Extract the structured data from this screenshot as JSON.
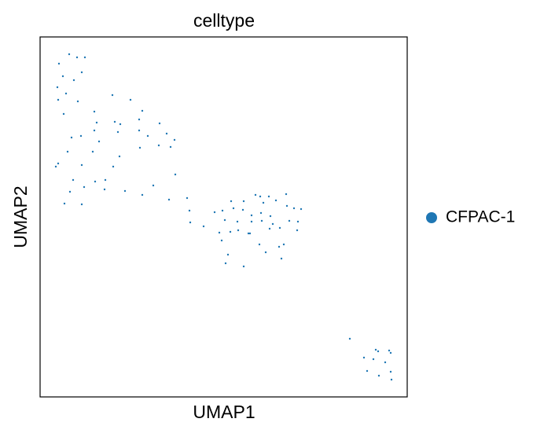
{
  "chart_data": {
    "type": "scatter",
    "title": "celltype",
    "x_label": "UMAP1",
    "y_label": "UMAP2",
    "xlim": [
      0,
      467
    ],
    "ylim": [
      0,
      458
    ],
    "legend": "right",
    "series": [
      {
        "name": "CFPAC-1",
        "color": "#1f77b4",
        "x": [
          37,
          47,
          57,
          24,
          53,
          29,
          43,
          22,
          33,
          23,
          48,
          69,
          30,
          92,
          115,
          130,
          72,
          95,
          102,
          126,
          152,
          69,
          99,
          126,
          137,
          161,
          40,
          52,
          75,
          171,
          127,
          151,
          166,
          35,
          67,
          101,
          23,
          20,
          53,
          93,
          172,
          42,
          70,
          83,
          56,
          38,
          82,
          108,
          130,
          144,
          31,
          53,
          164,
          187,
          190,
          191,
          208,
          222,
          232,
          243,
          246,
          259,
          258,
          274,
          280,
          291,
          313,
          284,
          300,
          269,
          281,
          293,
          314,
          323,
          332,
          235,
          251,
          269,
          282,
          296,
          317,
          228,
          242,
          252,
          265,
          267,
          292,
          305,
          327,
          328,
          231,
          279,
          287,
          304,
          310,
          239,
          236,
          259,
          307,
          394,
          427,
          430,
          444,
          446,
          412,
          424,
          439,
          416,
          431,
          446,
          447
        ],
        "values": [
          436,
          432,
          432,
          424,
          413,
          408,
          403,
          394,
          386,
          378,
          376,
          363,
          360,
          384,
          378,
          364,
          349,
          350,
          347,
          353,
          348,
          339,
          337,
          339,
          332,
          335,
          330,
          332,
          325,
          327,
          317,
          320,
          318,
          312,
          312,
          306,
          297,
          293,
          295,
          293,
          283,
          276,
          274,
          276,
          267,
          261,
          264,
          262,
          257,
          269,
          246,
          245,
          251,
          253,
          237,
          222,
          217,
          235,
          237,
          249,
          240,
          249,
          238,
          257,
          255,
          255,
          258,
          247,
          250,
          231,
          234,
          230,
          243,
          240,
          239,
          225,
          223,
          223,
          224,
          220,
          224,
          209,
          210,
          212,
          208,
          208,
          214,
          215,
          212,
          223,
          199,
          194,
          184,
          191,
          194,
          181,
          170,
          166,
          176,
          74,
          60,
          58,
          59,
          56,
          50,
          48,
          44,
          33,
          27,
          32,
          22
        ]
      }
    ]
  }
}
